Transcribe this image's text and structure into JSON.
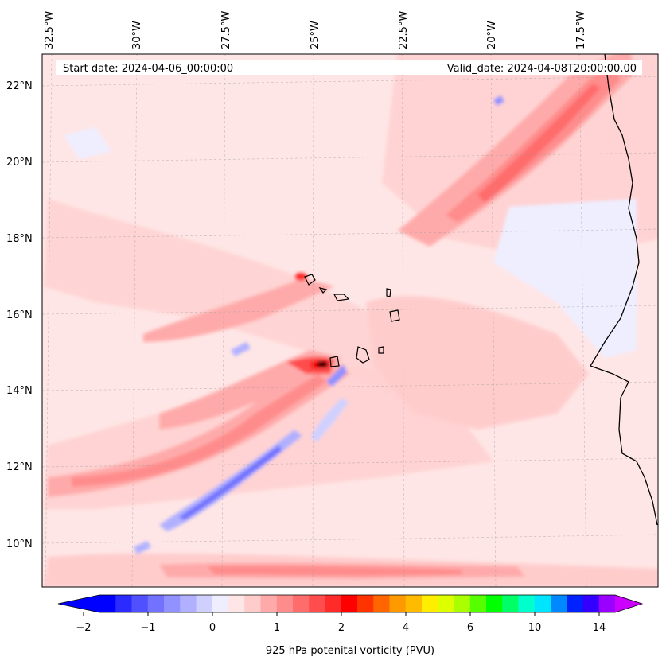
{
  "map": {
    "start_label": "Start date: 2024-04-06_00:00:00",
    "valid_label": "Valid_date: 2024-04-08T20:00:00.00",
    "lon_labels": [
      "32.5°W",
      "30°W",
      "27.5°W",
      "25°W",
      "22.5°W",
      "20°W",
      "17.5°W"
    ],
    "lat_labels": [
      "22°N",
      "20°N",
      "18°N",
      "16°N",
      "14°N",
      "12°N",
      "10°N"
    ],
    "field": "925 hPa potential vorticity",
    "region": "Cape Verde / West African coast"
  },
  "colorbar": {
    "label": "925 hPa potenital vorticity (PVU)",
    "ticks": [
      "−2",
      "−1",
      "0",
      "1",
      "2",
      "4",
      "6",
      "10",
      "14"
    ],
    "colors": [
      "#0000ff",
      "#2b2bff",
      "#5050ff",
      "#7272ff",
      "#9191ff",
      "#b0b0ff",
      "#d0d0ff",
      "#eeeeff",
      "#ffe6e6",
      "#ffcccc",
      "#ffaaaa",
      "#ff8c8c",
      "#ff6c6c",
      "#ff4c4c",
      "#ff2a2a",
      "#ff0000",
      "#ff3300",
      "#ff6600",
      "#ff9900",
      "#ffbb00",
      "#ffee00",
      "#ddff00",
      "#aaff00",
      "#55ff00",
      "#00ff00",
      "#00ff66",
      "#00ffcc",
      "#00e5ff",
      "#0088ff",
      "#0022ff",
      "#3300ff",
      "#9900ff"
    ],
    "under_color": "#0000ff",
    "over_color": "#cc00ff"
  }
}
